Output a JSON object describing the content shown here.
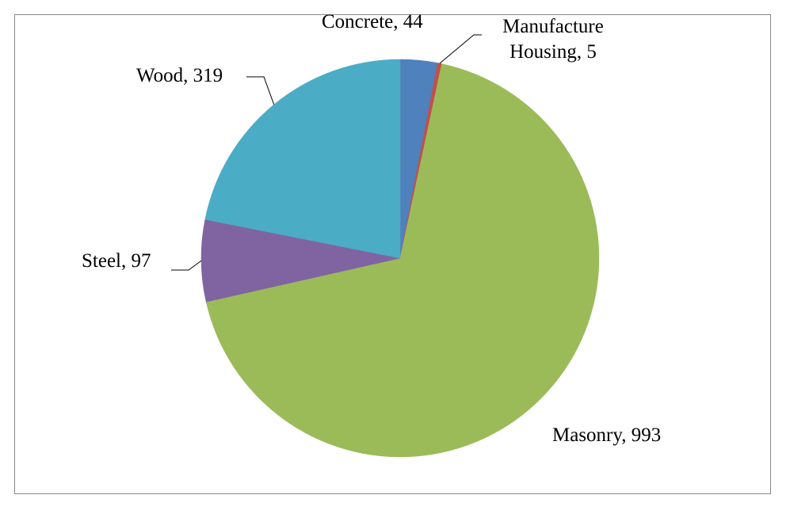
{
  "chart_data": {
    "type": "pie",
    "categories": [
      "Concrete",
      "Manufacture Housing",
      "Masonry",
      "Steel",
      "Wood"
    ],
    "values": [
      44,
      5,
      993,
      97,
      319
    ],
    "colors": [
      "#4f81bd",
      "#c0504d",
      "#9bbb59",
      "#8064a2",
      "#4bacc6"
    ],
    "label_separator": ", "
  }
}
